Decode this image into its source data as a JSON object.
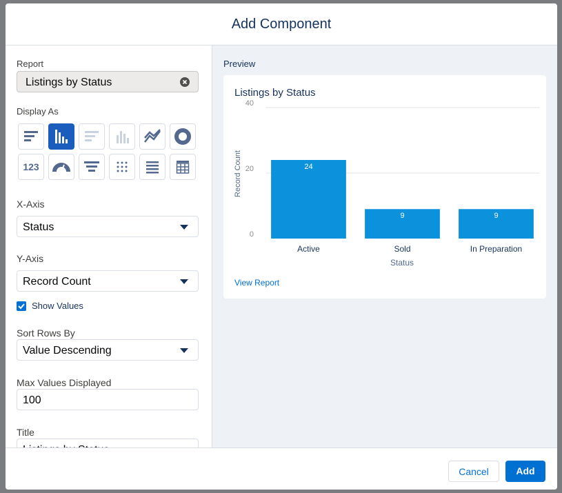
{
  "modal": {
    "title": "Add Component"
  },
  "form": {
    "report_label": "Report",
    "report_value": "Listings by Status",
    "display_as_label": "Display As",
    "metric_icon_text": "123",
    "x_axis_label": "X-Axis",
    "x_axis_value": "Status",
    "y_axis_label": "Y-Axis",
    "y_axis_value": "Record Count",
    "show_values_label": "Show Values",
    "sort_label": "Sort Rows By",
    "sort_value": "Value Descending",
    "max_label": "Max Values Displayed",
    "max_value": "100",
    "title_label": "Title",
    "title_value": "Listings by Status"
  },
  "preview": {
    "label": "Preview",
    "view_report": "View Report"
  },
  "chart_data": {
    "type": "bar",
    "title": "Listings by Status",
    "x_label": "Status",
    "y_label": "Record Count",
    "categories": [
      "Active",
      "Sold",
      "In Preparation"
    ],
    "values": [
      24,
      9,
      9
    ],
    "color": "#0c92dd",
    "ylim": [
      0,
      40
    ],
    "yticks": [
      0,
      20,
      40
    ],
    "grid": true,
    "show_values": true
  },
  "footer": {
    "cancel": "Cancel",
    "add": "Add"
  }
}
